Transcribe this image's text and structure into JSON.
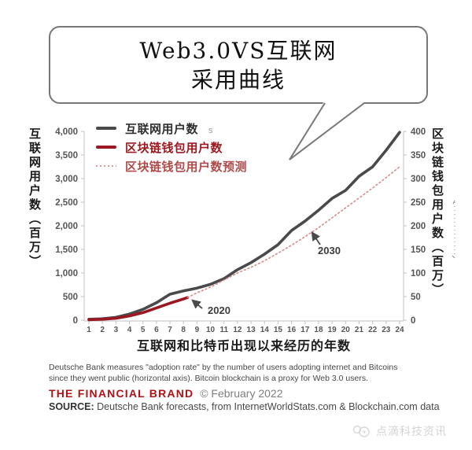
{
  "bubble": {
    "line1": "Web3.0VS互联网",
    "line2": "采用曲线"
  },
  "legend": {
    "items": [
      {
        "label": "互联网用户数",
        "color": "#4a4a4c",
        "text_color": "#2f2f31",
        "style": "solid"
      },
      {
        "label": "区块链钱包用户数",
        "color": "#9c1820",
        "text_color": "#9c1820",
        "style": "solid"
      },
      {
        "label": "区块链钱包用户数预测",
        "color": "#dc9a9a",
        "text_color": "#b04a4a",
        "style": "dotted"
      }
    ]
  },
  "artifacts": {
    "stray_s": "s"
  },
  "chart_data": {
    "type": "line",
    "xlabel": "互联网和比特币出现以来经历的年数",
    "grid": false,
    "legend_position": "top-left",
    "x_ticks": [
      "1",
      "2",
      "3",
      "4",
      "5",
      "6",
      "7",
      "8",
      "9",
      "10",
      "11",
      "12",
      "13",
      "14",
      "15",
      "16",
      "17",
      "18",
      "19",
      "20",
      "21",
      "22",
      "23",
      "24"
    ],
    "left_axis": {
      "title": "互联网用户数（百万）",
      "range": [
        0,
        4000
      ],
      "tick_values": [
        0,
        500,
        1000,
        1500,
        2000,
        2500,
        3000,
        3500,
        4000
      ],
      "tick_labels": [
        "0",
        "500",
        "1,000",
        "1,500",
        "2,000",
        "2,500",
        "3,000",
        "3,500",
        "4,000"
      ]
    },
    "right_axis": {
      "title": "区块链钱包用户数（百万）",
      "range": [
        0,
        400
      ],
      "tick_values": [
        0,
        50,
        100,
        150,
        200,
        250,
        300,
        350,
        400
      ],
      "tick_labels": [
        "0",
        "50",
        "100",
        "150",
        "200",
        "250",
        "300",
        "350",
        "400"
      ]
    },
    "series": [
      {
        "name": "互联网用户数",
        "axis": "left",
        "color": "#4a4a4c",
        "style": "solid",
        "width": 3.6,
        "x": [
          1,
          2,
          3,
          4,
          5,
          6,
          7,
          8,
          9,
          10,
          11,
          12,
          13,
          14,
          15,
          16,
          17,
          18,
          19,
          20,
          21,
          22,
          23,
          24
        ],
        "values": [
          20,
          30,
          60,
          130,
          230,
          370,
          550,
          620,
          680,
          760,
          880,
          1070,
          1220,
          1400,
          1600,
          1900,
          2100,
          2330,
          2580,
          2750,
          3050,
          3250,
          3600,
          3980
        ]
      },
      {
        "name": "区块链钱包用户数",
        "axis": "right",
        "color": "#9c1820",
        "style": "solid",
        "width": 3.6,
        "x": [
          1,
          2,
          3,
          4,
          5,
          6,
          7,
          8,
          8.3
        ],
        "values": [
          1,
          2,
          4,
          9,
          16,
          26,
          36,
          45,
          48
        ]
      },
      {
        "name": "区块链钱包用户数预测",
        "axis": "right",
        "color": "#d58c8c",
        "style": "dotted",
        "width": 1.6,
        "x": [
          8.3,
          9,
          10,
          11,
          12,
          13,
          14,
          15,
          16,
          17,
          18,
          19,
          20,
          21,
          22,
          23,
          24
        ],
        "values": [
          48,
          58,
          70,
          85,
          100,
          112,
          126,
          142,
          159,
          177,
          196,
          217,
          238,
          259,
          280,
          302,
          325
        ]
      }
    ],
    "annotations": [
      {
        "text": "2020"
      },
      {
        "text": "2030"
      }
    ]
  },
  "footer": {
    "note_line1": "Deutsche Bank measures \"adoption rate\" by the number of users adopting internet and Bitcoins",
    "note_line2": "since they went public (horizontal axis). Bitcoin blockchain is a proxy for Web 3.0 users.",
    "brand": "THE FINANCIAL BRAND",
    "brand_suffix": "© February 2022",
    "source_label": "SOURCE:",
    "source_text": " Deutsche Bank forecasts, from InternetWorldStats.com & Blockchain.com data"
  },
  "watermark": {
    "text": "点滴科技资讯"
  }
}
